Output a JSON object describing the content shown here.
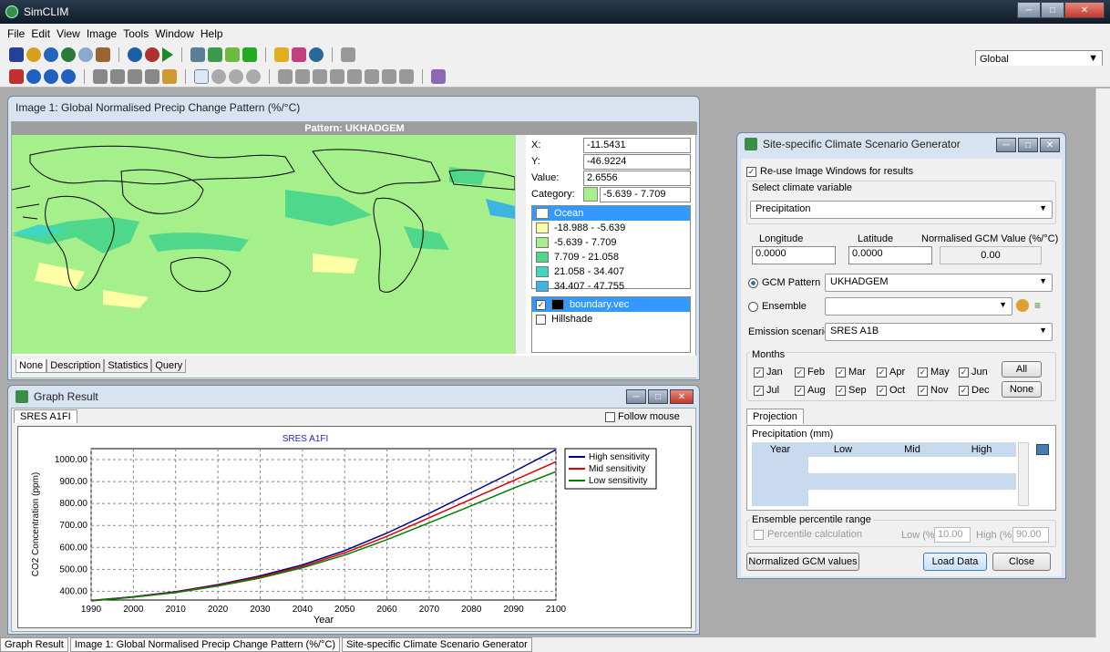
{
  "app": {
    "title": "SimCLIM"
  },
  "menu": [
    "File",
    "Edit",
    "View",
    "Image",
    "Tools",
    "Window",
    "Help"
  ],
  "region_select": "Global",
  "image_window": {
    "title": "Image 1: Global Normalised Precip Change Pattern (%/°C)",
    "pattern_label": "Pattern: UKHADGEM",
    "x_label": "X:",
    "x": "-11.5431",
    "y_label": "Y:",
    "y": "-46.9224",
    "value_label": "Value:",
    "value": "2.6556",
    "category_label": "Category:",
    "category": "-5.639  -  7.709",
    "legend": [
      {
        "label": "Ocean",
        "color": "#ffffff"
      },
      {
        "label": "-18.988  -  -5.639",
        "color": "#ffffa6"
      },
      {
        "label": "-5.639  -  7.709",
        "color": "#a6f08c"
      },
      {
        "label": "7.709  -  21.058",
        "color": "#4fd88c"
      },
      {
        "label": "21.058  -  34.407",
        "color": "#3fd6c4"
      },
      {
        "label": "34.407  -  47.755",
        "color": "#3fb4e0"
      }
    ],
    "layers": [
      {
        "label": "boundary.vec",
        "checked": "✓"
      },
      {
        "label": "Hillshade",
        "checked": ""
      }
    ],
    "tabs": [
      "None",
      "Description",
      "Statistics",
      "Query"
    ]
  },
  "graph_window": {
    "title": "Graph Result",
    "tab": "SRES A1FI",
    "follow_mouse": "Follow mouse"
  },
  "chart_data": {
    "type": "line",
    "title": "SRES A1FI",
    "xlabel": "Year",
    "ylabel": "CO2 Concentration (ppm)",
    "xlim": [
      1990,
      2100
    ],
    "ylim": [
      360,
      1050
    ],
    "xticks": [
      "1990",
      "2000",
      "2010",
      "2020",
      "2030",
      "2040",
      "2050",
      "2060",
      "2070",
      "2080",
      "2090",
      "2100"
    ],
    "yticks": [
      "400.00",
      "500.00",
      "600.00",
      "700.00",
      "800.00",
      "900.00",
      "1000.00"
    ],
    "x": [
      1990,
      2000,
      2010,
      2020,
      2030,
      2040,
      2050,
      2060,
      2070,
      2080,
      2090,
      2100
    ],
    "series": [
      {
        "name": "High sensitivity",
        "color": "#00008b",
        "values": [
          358,
          375,
          398,
          430,
          470,
          520,
          585,
          665,
          755,
          850,
          945,
          1045
        ]
      },
      {
        "name": "Mid sensitivity",
        "color": "#e00000",
        "values": [
          357,
          374,
          396,
          427,
          465,
          513,
          575,
          650,
          735,
          820,
          905,
          990
        ]
      },
      {
        "name": "Low sensitivity",
        "color": "#008000",
        "values": [
          356,
          373,
          394,
          424,
          460,
          507,
          565,
          635,
          712,
          790,
          870,
          945
        ]
      }
    ],
    "legend_position": "top-right",
    "grid": true
  },
  "generator": {
    "title": "Site-specific Climate Scenario Generator",
    "reuse": "Re-use Image Windows for results",
    "select_var_label": "Select climate variable",
    "variable": "Precipitation",
    "lon_label": "Longitude",
    "lon": "0.0000",
    "lat_label": "Latitude",
    "lat": "0.0000",
    "gcm_value_label": "Normalised GCM Value (%/°C)",
    "gcm_value": "0.00",
    "gcm_pattern_label": "GCM Pattern",
    "gcm_pattern": "UKHADGEM",
    "ensemble_label": "Ensemble",
    "ensemble": "",
    "emission_label": "Emission scenario",
    "emission": "SRES A1B",
    "months_label": "Months",
    "months": [
      "Jan",
      "Feb",
      "Mar",
      "Apr",
      "May",
      "Jun",
      "Jul",
      "Aug",
      "Sep",
      "Oct",
      "Nov",
      "Dec"
    ],
    "all_btn": "All",
    "none_btn": "None",
    "projection_tab": "Projection",
    "projection_label": "Precipitation (mm)",
    "cols": [
      "Year",
      "Low",
      "Mid",
      "High"
    ],
    "ens_label": "Ensemble percentile range",
    "percentile_label": "Percentile calculation",
    "low_label": "Low (%)",
    "low": "10.00",
    "high_label": "High (%)",
    "high": "90.00",
    "normalized_btn": "Normalized GCM values",
    "load_btn": "Load Data",
    "close_btn": "Close"
  },
  "taskbar": [
    "Graph Result",
    "Image 1: Global Normalised Precip Change Pattern (%/°C)",
    "Site-specific Climate Scenario Generator"
  ]
}
